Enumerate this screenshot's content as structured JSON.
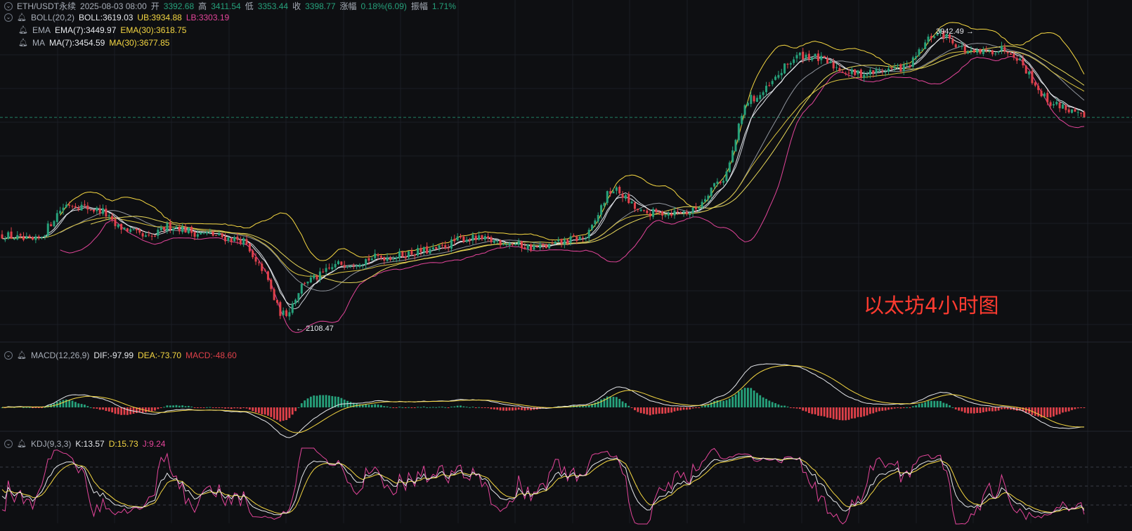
{
  "header": {
    "symbol": "ETH/USDT永续",
    "datetime": "2025-08-03 08:00",
    "open_label": "开",
    "open": "3392.68",
    "high_label": "高",
    "high": "3411.54",
    "low_label": "低",
    "low": "3353.44",
    "close_label": "收",
    "close": "3398.77",
    "change_label": "涨幅",
    "change": "0.18%(6.09)",
    "amplitude_label": "振幅",
    "amplitude": "1.71%"
  },
  "indicators": {
    "boll": {
      "name": "BOLL(20,2)",
      "mid": "BOLL:3619.03",
      "ub": "UB:3934.88",
      "lb": "LB:3303.19"
    },
    "ema": {
      "name": "EMA",
      "ema7": "EMA(7):3449.97",
      "ema30": "EMA(30):3618.75"
    },
    "ma": {
      "name": "MA",
      "ma7": "MA(7):3454.59",
      "ma30": "MA(30):3677.85"
    },
    "macd": {
      "name": "MACD(12,26,9)",
      "dif": "DIF:-97.99",
      "dea": "DEA:-73.70",
      "macd": "MACD:-48.60"
    },
    "kdj": {
      "name": "KDJ(9,3,3)",
      "k": "K:13.57",
      "d": "D:15.73",
      "j": "J:9.24"
    }
  },
  "annotation": "以太坊4小时图",
  "markers": {
    "high": "3942.49",
    "low": "2108.47"
  },
  "colors": {
    "background": "#0e0f12",
    "up": "#26a17b",
    "down": "#e0414a",
    "white_line": "#e6e8ec",
    "yellow_line": "#f5d742",
    "magenta_line": "#e3459a",
    "annotation": "#ff3b30"
  },
  "chart_data": {
    "type": "candlestick",
    "symbol": "ETH/USDT",
    "timeframe": "4h",
    "price_range": [
      2050,
      4020
    ],
    "candle_count": 355,
    "keyframes": [
      {
        "i": 0,
        "p": 2640
      },
      {
        "i": 10,
        "p": 2600
      },
      {
        "i": 22,
        "p": 2840
      },
      {
        "i": 32,
        "p": 2800
      },
      {
        "i": 38,
        "p": 2690
      },
      {
        "i": 48,
        "p": 2620
      },
      {
        "i": 55,
        "p": 2700
      },
      {
        "i": 65,
        "p": 2650
      },
      {
        "i": 78,
        "p": 2610
      },
      {
        "i": 84,
        "p": 2440
      },
      {
        "i": 92,
        "p": 2130
      },
      {
        "i": 100,
        "p": 2350
      },
      {
        "i": 112,
        "p": 2460
      },
      {
        "i": 125,
        "p": 2500
      },
      {
        "i": 140,
        "p": 2540
      },
      {
        "i": 152,
        "p": 2620
      },
      {
        "i": 162,
        "p": 2600
      },
      {
        "i": 175,
        "p": 2560
      },
      {
        "i": 190,
        "p": 2620
      },
      {
        "i": 200,
        "p": 2930
      },
      {
        "i": 210,
        "p": 2780
      },
      {
        "i": 225,
        "p": 2790
      },
      {
        "i": 235,
        "p": 2990
      },
      {
        "i": 245,
        "p": 3520
      },
      {
        "i": 262,
        "p": 3800
      },
      {
        "i": 280,
        "p": 3680
      },
      {
        "i": 295,
        "p": 3720
      },
      {
        "i": 306,
        "p": 3940
      },
      {
        "i": 318,
        "p": 3810
      },
      {
        "i": 328,
        "p": 3840
      },
      {
        "i": 345,
        "p": 3480
      },
      {
        "i": 354,
        "p": 3399
      }
    ],
    "last_close": 3398.77,
    "high_marker": 3942.49,
    "low_marker": 2108.47,
    "boll": {
      "period": 20,
      "k": 2,
      "mid": 3619.03,
      "ub": 3934.88,
      "lb": 3303.19
    },
    "ema": {
      "ema7": 3449.97,
      "ema30": 3618.75
    },
    "ma": {
      "ma7": 3454.59,
      "ma30": 3677.85
    },
    "macd": {
      "params": [
        12,
        26,
        9
      ],
      "dif": -97.99,
      "dea": -73.7,
      "macd": -48.6
    },
    "kdj": {
      "params": [
        9,
        3,
        3
      ],
      "k": 13.57,
      "d": 15.73,
      "j": 9.24
    },
    "grid": true
  }
}
